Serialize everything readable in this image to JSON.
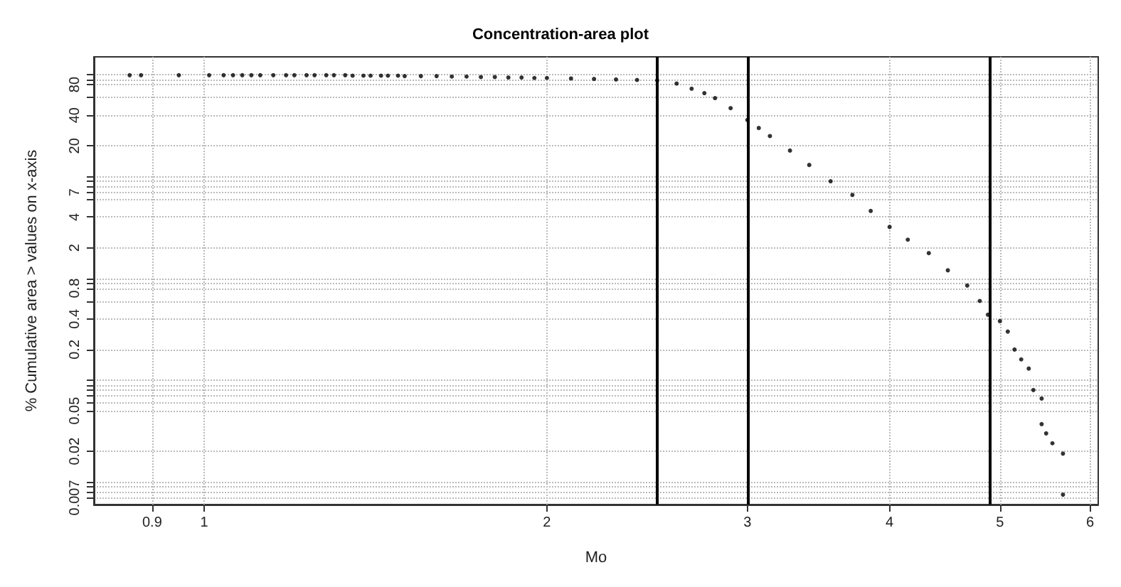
{
  "chart_data": {
    "type": "scatter",
    "title": "Concentration-area plot",
    "xlabel": "Mo",
    "ylabel": "% Cumulative area > values on x-axis",
    "x": [
      0.86,
      0.88,
      0.95,
      1.01,
      1.04,
      1.06,
      1.08,
      1.1,
      1.12,
      1.15,
      1.18,
      1.2,
      1.23,
      1.25,
      1.28,
      1.3,
      1.33,
      1.35,
      1.38,
      1.4,
      1.43,
      1.45,
      1.48,
      1.5,
      1.55,
      1.6,
      1.65,
      1.7,
      1.75,
      1.8,
      1.85,
      1.9,
      1.95,
      2.0,
      2.1,
      2.2,
      2.3,
      2.4,
      2.5,
      2.6,
      2.68,
      2.75,
      2.81,
      2.9,
      3.0,
      3.07,
      3.14,
      3.27,
      3.4,
      3.55,
      3.71,
      3.85,
      4.0,
      4.15,
      4.33,
      4.5,
      4.68,
      4.8,
      4.88,
      5.0,
      5.08,
      5.15,
      5.22,
      5.3,
      5.35,
      5.44,
      5.44,
      5.49,
      5.56,
      5.68,
      5.68
    ],
    "values": [
      99,
      99,
      99,
      99,
      99,
      99,
      99,
      99,
      99,
      99,
      99,
      99,
      99,
      99,
      99,
      99,
      99,
      98,
      98,
      98,
      98,
      98,
      98,
      97,
      97,
      97,
      96,
      96,
      95,
      95,
      94,
      94,
      93,
      93,
      92,
      91,
      90,
      89,
      88,
      82,
      73,
      66,
      59,
      47,
      36,
      30,
      25,
      18,
      13,
      9,
      6.6,
      4.6,
      3.2,
      2.4,
      1.77,
      1.2,
      0.85,
      0.6,
      0.44,
      0.38,
      0.3,
      0.2,
      0.16,
      0.13,
      0.08,
      0.066,
      0.037,
      0.03,
      0.024,
      0.019,
      0.0075
    ],
    "color": "#000000",
    "marker": "circle",
    "xlim": [
      0.8,
      6.1
    ],
    "ylim": [
      0.006,
      150
    ],
    "xticks": [
      0.9,
      1,
      2,
      3,
      4,
      5,
      6
    ],
    "yticks": [
      0.007,
      {
        "value": 0.008,
        "label": null
      },
      {
        "value": 0.009,
        "label": null
      },
      {
        "value": 0.01,
        "label": null
      },
      0.02,
      0.05,
      {
        "value": 0.06,
        "label": null
      },
      {
        "value": 0.07,
        "label": null
      },
      {
        "value": 0.08,
        "label": null
      },
      {
        "value": 0.09,
        "label": null
      },
      {
        "value": 0.1,
        "label": null
      },
      0.2,
      0.4,
      {
        "value": 0.6,
        "label": null
      },
      0.8,
      {
        "value": 0.9,
        "label": null
      },
      {
        "value": 1,
        "label": null
      },
      2,
      4,
      {
        "value": 6,
        "label": null
      },
      7,
      {
        "value": 8,
        "label": null
      },
      {
        "value": 9,
        "label": null
      },
      {
        "value": 10,
        "label": null
      },
      20,
      40,
      {
        "value": 60,
        "label": null
      },
      80,
      {
        "value": 90,
        "label": null
      },
      {
        "value": 100,
        "label": null
      }
    ],
    "log": "xy",
    "grid": true,
    "ref_lines": [
      {
        "axis": "x",
        "value": 2.5,
        "color": "#000000"
      },
      {
        "axis": "x",
        "value": 3,
        "color": "#000000"
      },
      {
        "axis": "x",
        "value": 4.9,
        "color": "#000000"
      }
    ]
  }
}
